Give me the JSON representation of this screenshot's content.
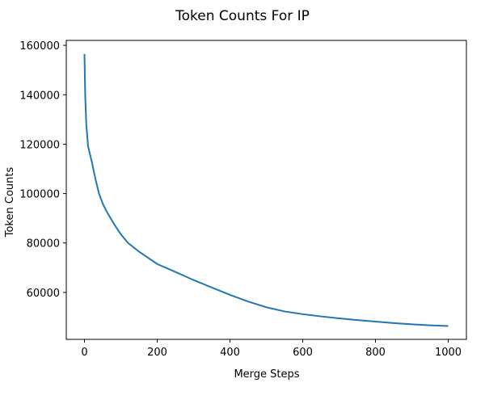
{
  "chart_data": {
    "type": "line",
    "title": "Token Counts For IP",
    "x_label": "Merge Steps",
    "y_label": "Token Counts",
    "x": [
      0,
      2,
      5,
      10,
      20,
      30,
      40,
      50,
      60,
      80,
      100,
      120,
      150,
      200,
      250,
      300,
      350,
      400,
      450,
      500,
      550,
      600,
      650,
      700,
      750,
      800,
      850,
      900,
      950,
      1000
    ],
    "values": [
      156500,
      140000,
      128000,
      119000,
      113000,
      106000,
      100000,
      96000,
      93000,
      88000,
      83500,
      80000,
      76500,
      71500,
      68300,
      65000,
      62000,
      59000,
      56300,
      54000,
      52300,
      51200,
      50300,
      49500,
      48800,
      48200,
      47600,
      47100,
      46700,
      46400
    ],
    "color": "#1f77b4",
    "xlim": [
      -50,
      1050
    ],
    "xticks": [
      0,
      200,
      400,
      600,
      800,
      1000
    ],
    "ylim": [
      41000,
      162000
    ],
    "yticks": [
      60000,
      80000,
      100000,
      120000,
      140000,
      160000
    ]
  }
}
